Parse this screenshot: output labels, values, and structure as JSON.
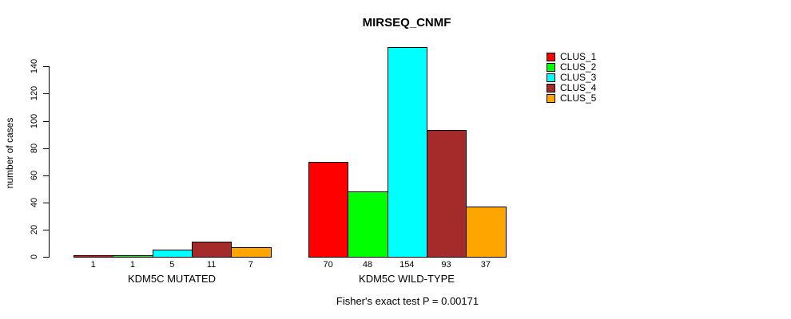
{
  "chart_data": {
    "type": "bar",
    "title": "MIRSEQ_CNMF",
    "ylabel": "number of cases",
    "xlabel": "",
    "categories": [
      "KDM5C MUTATED",
      "KDM5C WILD-TYPE"
    ],
    "series": [
      {
        "name": "CLUS_1",
        "color": "#FF0000",
        "values": [
          1,
          70
        ]
      },
      {
        "name": "CLUS_2",
        "color": "#00FF00",
        "values": [
          1,
          48
        ]
      },
      {
        "name": "CLUS_3",
        "color": "#00FFFF",
        "values": [
          5,
          154
        ]
      },
      {
        "name": "CLUS_4",
        "color": "#A52A2A",
        "values": [
          11,
          93
        ]
      },
      {
        "name": "CLUS_5",
        "color": "#FFA500",
        "values": [
          7,
          37
        ]
      }
    ],
    "yticks": [
      0,
      20,
      40,
      60,
      80,
      100,
      120,
      140
    ],
    "ylim": [
      0,
      140
    ],
    "grid": false,
    "legend_position": "right",
    "bar_value_labels_shown": true,
    "annotation": "Fisher's exact test P = 0.00171"
  }
}
